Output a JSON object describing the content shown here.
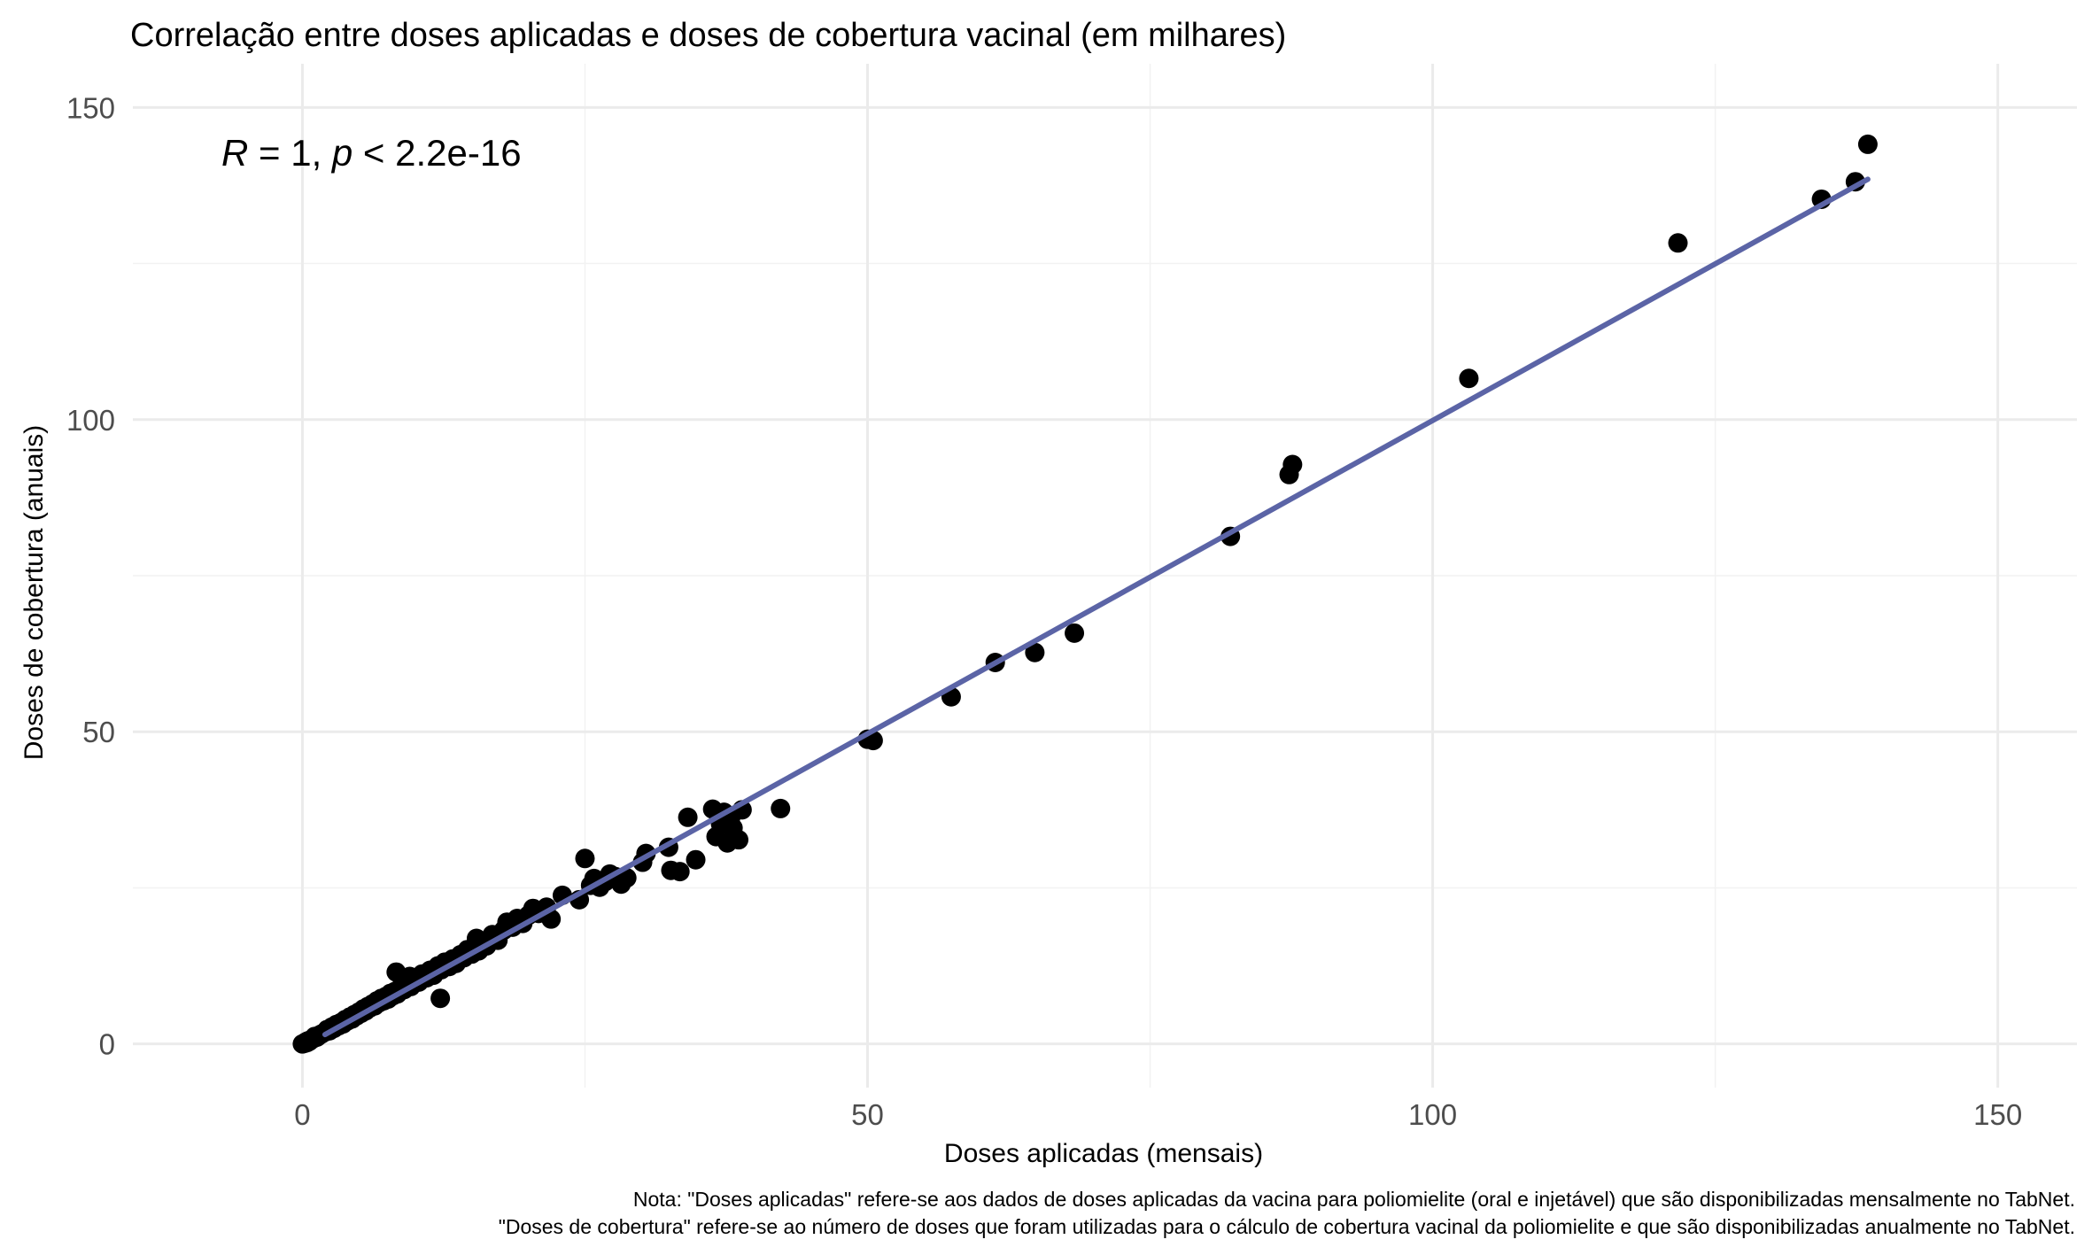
{
  "chart_data": {
    "type": "scatter",
    "title": "Correlação entre doses aplicadas e doses de cobertura vacinal (em milhares)",
    "xlabel": "Doses aplicadas (mensais)",
    "ylabel": "Doses de cobertura (anuais)",
    "xlim": [
      -15,
      157
    ],
    "ylim": [
      -7,
      157
    ],
    "x_ticks": [
      0,
      50,
      100,
      150
    ],
    "y_ticks": [
      0,
      50,
      100,
      150
    ],
    "grid": true,
    "legend": "none",
    "annotation": {
      "R": "R",
      "r_value": " = 1, ",
      "p": "p",
      "p_value": " < 2.2e-16"
    },
    "caption": [
      "Nota: \"Doses aplicadas\" refere-se aos dados de doses aplicadas da vacina para poliomielite (oral e injetável) que são disponibilizadas mensalmente no TabNet.",
      "\"Doses de cobertura\" refere-se ao número de doses que foram utilizadas para o cálculo de cobertura vacinal da poliomielite e que são disponibilizadas anualmente no TabNet."
    ],
    "fit_line": {
      "color": "#5b64a6",
      "x": [
        2,
        138.5
      ],
      "y": [
        1.5,
        138.5
      ]
    },
    "points": [
      [
        0,
        0
      ],
      [
        0.2,
        0.1
      ],
      [
        0.3,
        0.3
      ],
      [
        0.4,
        0.2
      ],
      [
        0.5,
        0.5
      ],
      [
        0.6,
        0.4
      ],
      [
        0.8,
        0.7
      ],
      [
        1,
        0.9
      ],
      [
        1.1,
        1.2
      ],
      [
        1.3,
        1.1
      ],
      [
        1.5,
        1.4
      ],
      [
        1.7,
        1.6
      ],
      [
        2,
        1.9
      ],
      [
        2.2,
        2.3
      ],
      [
        2.4,
        2.1
      ],
      [
        2.6,
        2.7
      ],
      [
        2.8,
        2.5
      ],
      [
        3,
        3.1
      ],
      [
        3.2,
        2.9
      ],
      [
        3.4,
        3.4
      ],
      [
        3.6,
        3.2
      ],
      [
        3.8,
        3.9
      ],
      [
        4,
        3.7
      ],
      [
        4.2,
        4.3
      ],
      [
        4.4,
        4.0
      ],
      [
        4.6,
        4.7
      ],
      [
        4.8,
        4.5
      ],
      [
        5,
        5.1
      ],
      [
        5.2,
        4.9
      ],
      [
        5.4,
        5.6
      ],
      [
        5.6,
        5.3
      ],
      [
        5.8,
        6.0
      ],
      [
        6,
        5.8
      ],
      [
        6.2,
        6.4
      ],
      [
        6.4,
        6.1
      ],
      [
        6.6,
        6.9
      ],
      [
        6.8,
        6.6
      ],
      [
        7,
        7.3
      ],
      [
        7.2,
        6.9
      ],
      [
        7.4,
        7.6
      ],
      [
        7.6,
        7.2
      ],
      [
        7.8,
        8.1
      ],
      [
        8,
        7.7
      ],
      [
        8.2,
        8.4
      ],
      [
        8.4,
        8.0
      ],
      [
        8.6,
        8.8
      ],
      [
        8.8,
        9.4
      ],
      [
        9,
        8.7
      ],
      [
        9.3,
        9.6
      ],
      [
        9.6,
        9.2
      ],
      [
        10,
        10.2
      ],
      [
        10.3,
        9.9
      ],
      [
        10.6,
        11.2
      ],
      [
        11,
        10.6
      ],
      [
        11.3,
        11.8
      ],
      [
        11.6,
        11.0
      ],
      [
        12,
        12.5
      ],
      [
        12.3,
        11.9
      ],
      [
        12.6,
        13.1
      ],
      [
        13,
        12.4
      ],
      [
        13.3,
        13.6
      ],
      [
        13.6,
        12.9
      ],
      [
        14,
        14.3
      ],
      [
        14.3,
        13.8
      ],
      [
        14.6,
        15.1
      ],
      [
        15,
        14.4
      ],
      [
        15.3,
        15.8
      ],
      [
        15.6,
        14.9
      ],
      [
        16,
        16.4
      ],
      [
        16.3,
        15.7
      ],
      [
        8.3,
        11.5
      ],
      [
        9.5,
        10.8
      ],
      [
        12.2,
        7.3
      ],
      [
        15.4,
        16.9
      ],
      [
        16.8,
        17.5
      ],
      [
        17.3,
        16.6
      ],
      [
        17.8,
        18.2
      ],
      [
        18.1,
        19.5
      ],
      [
        18.6,
        18.7
      ],
      [
        19,
        20.1
      ],
      [
        19.5,
        19.3
      ],
      [
        20,
        20.6
      ],
      [
        20.4,
        21.7
      ],
      [
        20.9,
        20.9
      ],
      [
        21.3,
        21.4
      ],
      [
        21.6,
        21.9
      ],
      [
        22,
        20.0
      ],
      [
        23,
        23.8
      ],
      [
        24.5,
        23.1
      ],
      [
        25,
        29.7
      ],
      [
        25.5,
        25.4
      ],
      [
        25.8,
        26.5
      ],
      [
        26.3,
        25.1
      ],
      [
        26.8,
        26.0
      ],
      [
        27.2,
        27.2
      ],
      [
        27.7,
        26.8
      ],
      [
        28.2,
        25.6
      ],
      [
        28.7,
        26.6
      ],
      [
        30.1,
        29.1
      ],
      [
        30.4,
        30.5
      ],
      [
        32.4,
        31.5
      ],
      [
        32.6,
        27.8
      ],
      [
        33.4,
        27.6
      ],
      [
        34.1,
        36.3
      ],
      [
        34.8,
        29.5
      ],
      [
        36.3,
        37.6
      ],
      [
        36.6,
        33.2
      ],
      [
        37.0,
        35.2
      ],
      [
        37.3,
        37.1
      ],
      [
        37.6,
        32.2
      ],
      [
        37.9,
        36.3
      ],
      [
        38.1,
        34.6
      ],
      [
        38.3,
        33.0
      ],
      [
        38.6,
        32.7
      ],
      [
        38.9,
        37.5
      ],
      [
        42.3,
        37.7
      ],
      [
        50.0,
        48.8
      ],
      [
        50.5,
        48.6
      ],
      [
        57.4,
        55.6
      ],
      [
        61.3,
        61.1
      ],
      [
        64.8,
        62.7
      ],
      [
        68.3,
        65.8
      ],
      [
        82.1,
        81.3
      ],
      [
        87.3,
        91.2
      ],
      [
        87.6,
        92.8
      ],
      [
        103.2,
        106.6
      ],
      [
        121.7,
        128.3
      ],
      [
        134.4,
        135.3
      ],
      [
        137.4,
        138.1
      ],
      [
        138.5,
        144.1
      ]
    ]
  }
}
